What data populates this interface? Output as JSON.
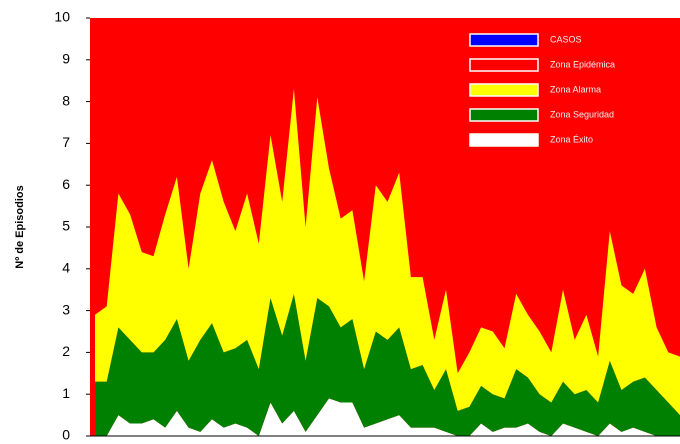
{
  "chart_data": {
    "type": "stacked_area",
    "y_label": "Nº de Episodios",
    "ylim": [
      0,
      10
    ],
    "yticks": [
      0,
      1,
      2,
      3,
      4,
      5,
      6,
      7,
      8,
      9,
      10
    ],
    "background_series": 1,
    "series": [
      {
        "name": "CASOS",
        "color": "#0000ff"
      },
      {
        "name": "Zona Epidémica",
        "color": "#ff0000"
      },
      {
        "name": "Zona Alarma",
        "color": "#ffff00",
        "values": [
          1.6,
          1.8,
          3.2,
          3.0,
          2.4,
          2.3,
          3.0,
          3.4,
          2.2,
          3.5,
          3.9,
          3.6,
          2.8,
          3.5,
          3.0,
          3.9,
          3.2,
          4.9,
          3.2,
          4.8,
          3.3,
          2.6,
          2.6,
          2.1,
          3.5,
          3.3,
          3.7,
          2.2,
          2.1,
          1.2,
          1.9,
          0.9,
          1.3,
          1.4,
          1.5,
          1.2,
          1.8,
          1.5,
          1.5,
          1.2,
          2.2,
          1.3,
          1.8,
          1.1,
          3.1,
          2.5,
          2.1,
          2.6,
          1.5,
          1.2,
          1.4
        ]
      },
      {
        "name": "Zona Seguridad",
        "color": "#008000",
        "values": [
          1.3,
          1.3,
          2.1,
          2.0,
          1.7,
          1.6,
          2.1,
          2.2,
          1.6,
          2.2,
          2.3,
          1.8,
          1.8,
          2.1,
          1.6,
          2.5,
          2.1,
          2.8,
          1.7,
          2.8,
          2.2,
          1.8,
          2.0,
          1.4,
          2.2,
          1.9,
          2.1,
          1.4,
          1.5,
          0.9,
          1.5,
          0.6,
          0.7,
          0.9,
          0.9,
          0.7,
          1.4,
          1.1,
          0.9,
          0.8,
          1.0,
          0.8,
          1.0,
          0.8,
          1.5,
          1.0,
          1.1,
          1.3,
          1.1,
          0.8,
          0.5
        ]
      },
      {
        "name": "Zona Éxito",
        "color": "#ffffff",
        "values": [
          0,
          0,
          0.5,
          0.3,
          0.3,
          0.4,
          0.2,
          0.6,
          0.2,
          0.1,
          0.4,
          0.2,
          0.3,
          0.2,
          0,
          0.8,
          0.3,
          0.6,
          0.1,
          0.5,
          0.9,
          0.8,
          0.8,
          0.2,
          0.3,
          0.4,
          0.5,
          0.2,
          0.2,
          0.2,
          0.1,
          0,
          0,
          0.3,
          0.1,
          0.2,
          0.2,
          0.3,
          0.1,
          0,
          0.3,
          0.2,
          0.1,
          0,
          0.3,
          0.1,
          0.2,
          0.1,
          0,
          0,
          0
        ]
      }
    ],
    "stack_order": [
      4,
      3,
      2
    ]
  }
}
